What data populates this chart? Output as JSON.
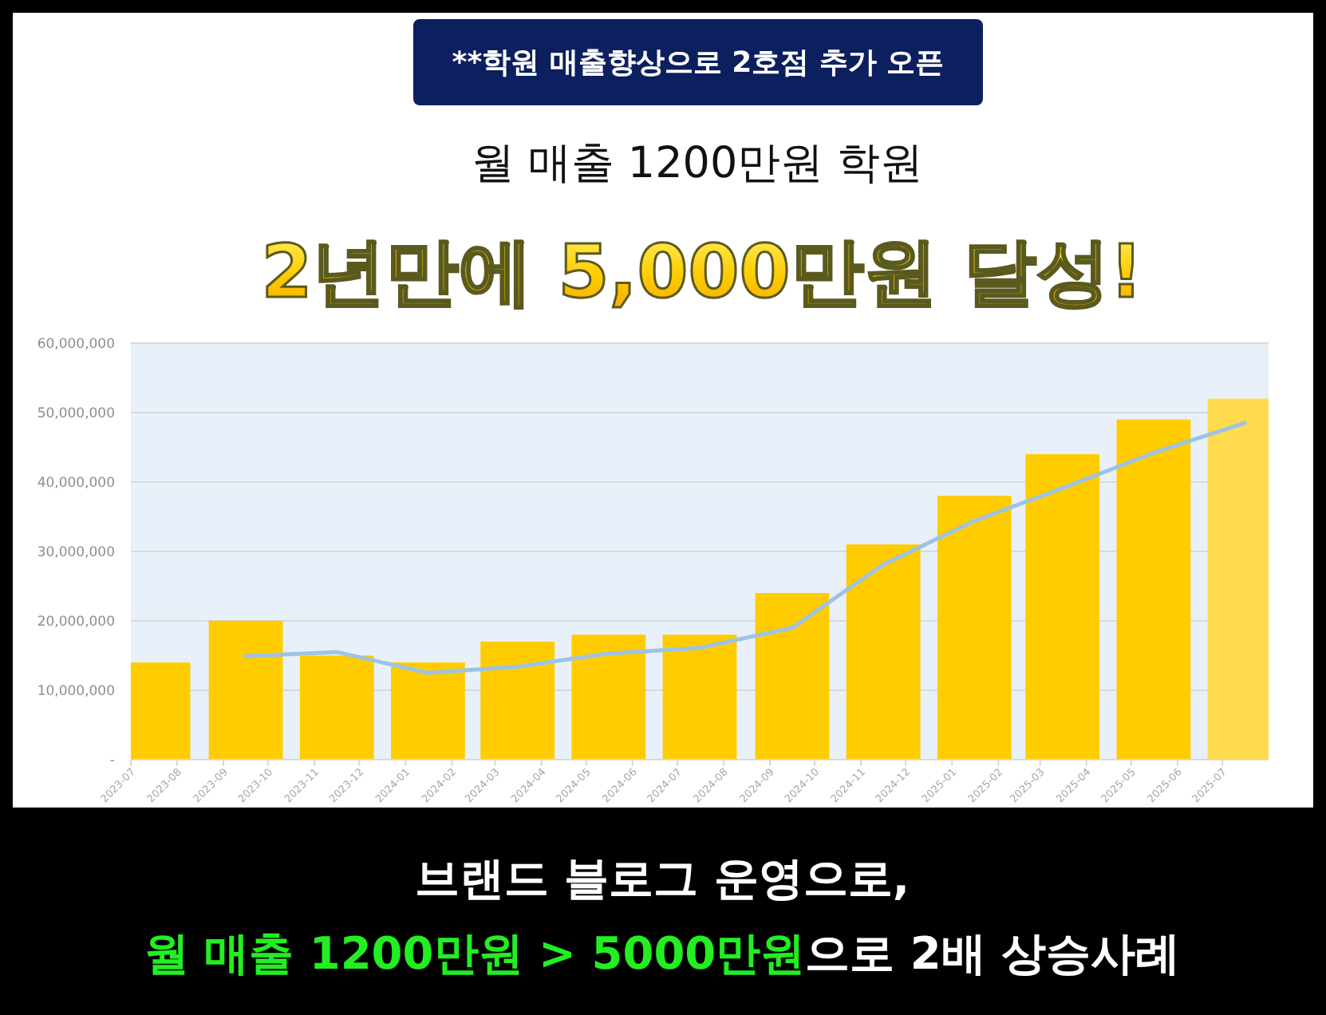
{
  "chart_data": {
    "type": "bar",
    "title": "2년만에 5,000만원 달성!",
    "subtitle": "월 매출 1200만원 학원",
    "annotations": [
      "**학원 매출향상으로 2호점 추가 오픈",
      "브랜드 블로그 운영으로,",
      "월 매출 1200만원 > 5000만원",
      "으로 2배 상승사례"
    ],
    "series": [
      {
        "x": [
          "2023-07-16",
          "2023-09-16",
          "2023-11-16",
          "2024-01-16",
          "2024-03-16",
          "2024-05-16",
          "2024-07-16",
          "2024-09-16",
          "2024-11-16",
          "2025-01-16",
          "2025-03-16",
          "2025-05-16",
          "2025-07-16"
        ],
        "values": [
          14000000,
          20000000,
          15000000,
          14000000,
          17000000,
          18000000,
          18000000,
          24000000,
          31000000,
          38000000,
          44000000,
          49000000,
          52000000
        ],
        "colors": [
          "#ffcc00",
          "#ffcc00",
          "#ffcc00",
          "#ffcc00",
          "#ffcc00",
          "#ffcc00",
          "#ffcc00",
          "#ffcc00",
          "#ffcc00",
          "#ffcc00",
          "#ffcc00",
          "#ffcc00",
          "#ffdb4d"
        ]
      },
      {
        "type": "line",
        "x": [
          "2023-09-16",
          "2023-11-16",
          "2024-01-16",
          "2024-03-16",
          "2024-05-16",
          "2024-07-16",
          "2024-09-16",
          "2024-11-16",
          "2025-01-16",
          "2025-03-16",
          "2025-05-16",
          "2025-07-16"
        ],
        "values": [
          14900000,
          15500000,
          12500000,
          13400000,
          15300000,
          16100000,
          19000000,
          28100000,
          34400000,
          39100000,
          44200000,
          48500000
        ],
        "color": "#9dc3e6"
      }
    ],
    "xlim": [
      "2023-07",
      "2025-08"
    ],
    "xticks": [
      "2023-07",
      "2023-08",
      "2023-09",
      "2023-10",
      "2023-11",
      "2023-12",
      "2024-01",
      "2024-02",
      "2024-03",
      "2024-04",
      "2024-05",
      "2024-06",
      "2024-07",
      "2024-08",
      "2024-09",
      "2024-10",
      "2024-11",
      "2024-12",
      "2025-01",
      "2025-02",
      "2025-03",
      "2025-04",
      "2025-05",
      "2025-06",
      "2025-07"
    ],
    "ylim": [
      0,
      60000000
    ],
    "yticks": [
      {
        "value": 0,
        "label": "-"
      },
      {
        "value": 10000000,
        "label": "10,000,000"
      },
      {
        "value": 20000000,
        "label": "20,000,000"
      },
      {
        "value": 30000000,
        "label": "30,000,000"
      },
      {
        "value": 40000000,
        "label": "40,000,000"
      },
      {
        "value": 50000000,
        "label": "50,000,000"
      },
      {
        "value": 60000000,
        "label": "60,000,000"
      }
    ],
    "grid": "y"
  }
}
